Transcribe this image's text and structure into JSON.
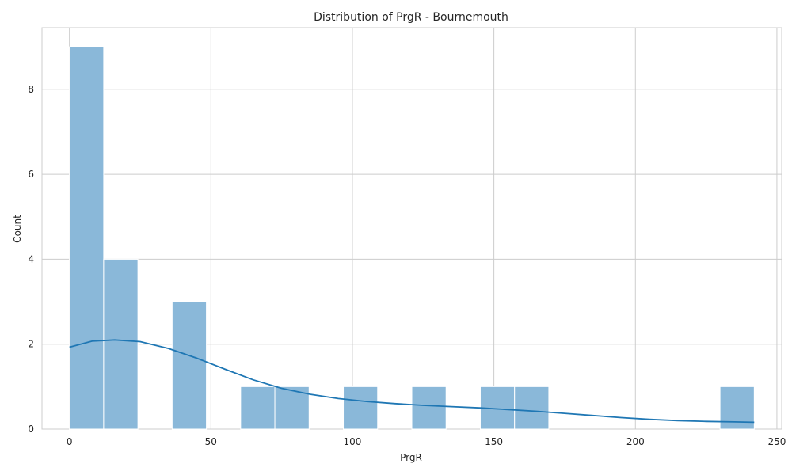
{
  "chart_data": {
    "type": "histogram",
    "title": "Distribution of PrgR - Bournemouth",
    "xlabel": "PrgR",
    "ylabel": "Count",
    "xlim": [
      -9.7,
      251.7
    ],
    "ylim": [
      0,
      9.45
    ],
    "xticks": [
      0,
      50,
      100,
      150,
      200,
      250
    ],
    "yticks": [
      0,
      2,
      4,
      6,
      8
    ],
    "grid": true,
    "bar_color": "#8ab8d9",
    "bar_edge": "#ffffff",
    "kde_color": "#1f77b4",
    "bins": [
      {
        "x0": 0.0,
        "x1": 12.1,
        "count": 9
      },
      {
        "x0": 12.1,
        "x1": 24.2,
        "count": 4
      },
      {
        "x0": 24.2,
        "x1": 36.3,
        "count": 0
      },
      {
        "x0": 36.3,
        "x1": 48.4,
        "count": 3
      },
      {
        "x0": 48.4,
        "x1": 60.5,
        "count": 0
      },
      {
        "x0": 60.5,
        "x1": 72.6,
        "count": 1
      },
      {
        "x0": 72.6,
        "x1": 84.7,
        "count": 1
      },
      {
        "x0": 84.7,
        "x1": 96.8,
        "count": 0
      },
      {
        "x0": 96.8,
        "x1": 108.9,
        "count": 1
      },
      {
        "x0": 108.9,
        "x1": 121.0,
        "count": 0
      },
      {
        "x0": 121.0,
        "x1": 133.1,
        "count": 1
      },
      {
        "x0": 133.1,
        "x1": 145.2,
        "count": 0
      },
      {
        "x0": 145.2,
        "x1": 157.3,
        "count": 1
      },
      {
        "x0": 157.3,
        "x1": 169.4,
        "count": 1
      },
      {
        "x0": 169.4,
        "x1": 181.5,
        "count": 0
      },
      {
        "x0": 181.5,
        "x1": 193.6,
        "count": 0
      },
      {
        "x0": 193.6,
        "x1": 205.7,
        "count": 0
      },
      {
        "x0": 205.7,
        "x1": 217.8,
        "count": 0
      },
      {
        "x0": 217.8,
        "x1": 229.9,
        "count": 0
      },
      {
        "x0": 229.9,
        "x1": 242.0,
        "count": 1
      }
    ],
    "kde": {
      "x": [
        0,
        8,
        16,
        25,
        35,
        45,
        55,
        65,
        75,
        85,
        95,
        105,
        115,
        125,
        135,
        145,
        155,
        165,
        175,
        185,
        195,
        205,
        215,
        225,
        235,
        242
      ],
      "y": [
        1.93,
        2.07,
        2.1,
        2.06,
        1.9,
        1.67,
        1.41,
        1.16,
        0.96,
        0.82,
        0.72,
        0.65,
        0.6,
        0.56,
        0.53,
        0.5,
        0.46,
        0.42,
        0.37,
        0.32,
        0.27,
        0.23,
        0.2,
        0.18,
        0.17,
        0.16
      ]
    }
  }
}
